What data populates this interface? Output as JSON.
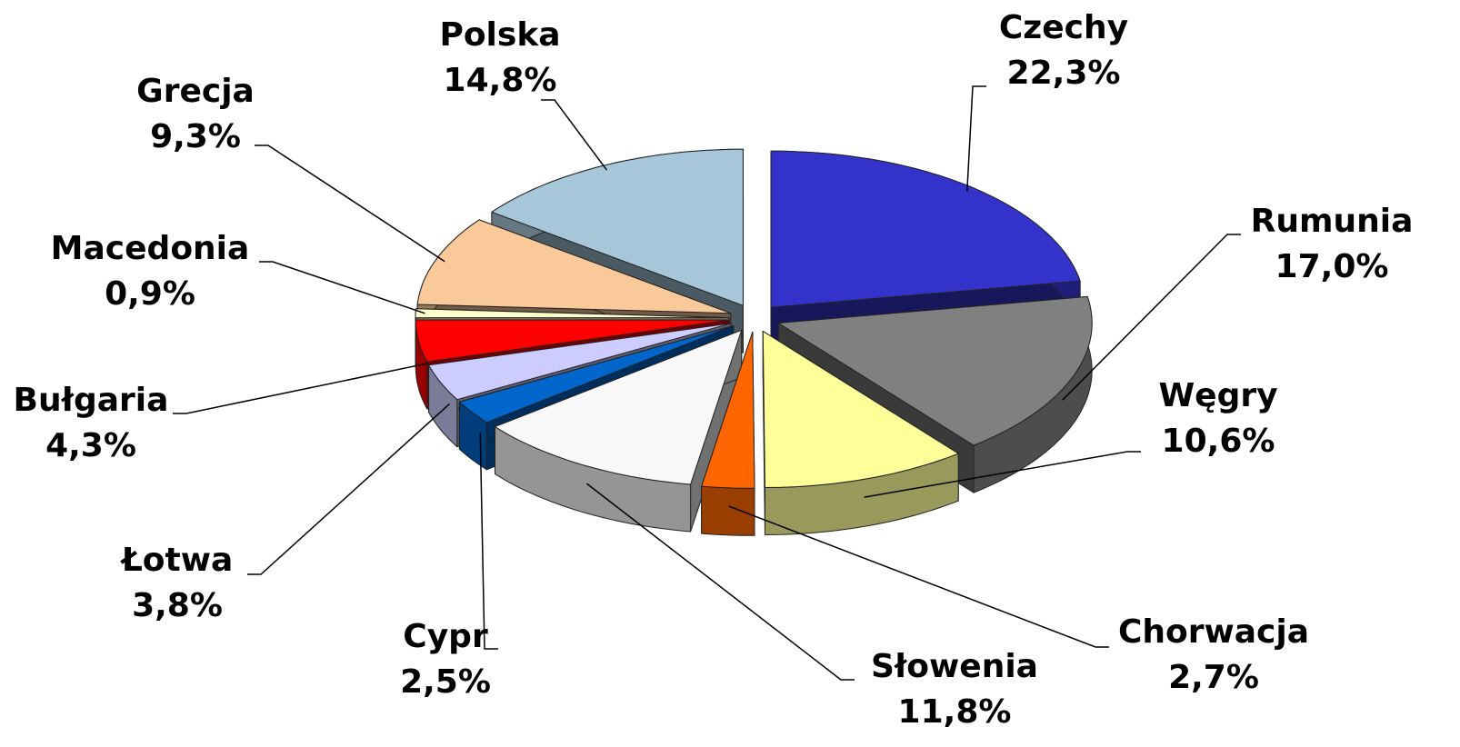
{
  "chart_data": {
    "type": "pie",
    "categories": [
      "Czechy",
      "Rumunia",
      "Węgry",
      "Chorwacja",
      "Słowenia",
      "Cypr",
      "Łotwa",
      "Bułgaria",
      "Macedonia",
      "Grecja",
      "Polska"
    ],
    "values": [
      22.3,
      17.0,
      10.6,
      2.7,
      11.8,
      2.5,
      3.8,
      4.3,
      0.9,
      9.3,
      14.8
    ],
    "value_labels": [
      "22,3%",
      "17,0%",
      "10,6%",
      "2,7%",
      "11,8%",
      "2,5%",
      "3,8%",
      "4,3%",
      "0,9%",
      "9,3%",
      "14,8%"
    ],
    "colors": [
      "#3333cc",
      "#808080",
      "#ffff99",
      "#ff6600",
      "#f8f8f8",
      "#0066cc",
      "#ccccff",
      "#ff0000",
      "#ffffcc",
      "#f9c99a",
      "#a6c6d9"
    ]
  }
}
